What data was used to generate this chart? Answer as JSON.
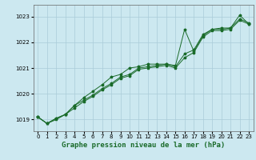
{
  "title": "Graphe pression niveau de la mer (hPa)",
  "background_color": "#cce8f0",
  "grid_color": "#aaccd8",
  "line_color": "#1a6b2a",
  "marker_color": "#1a6b2a",
  "xlim": [
    -0.5,
    23.5
  ],
  "ylim": [
    1018.55,
    1023.45
  ],
  "yticks": [
    1019,
    1020,
    1021,
    1022,
    1023
  ],
  "xticks": [
    0,
    1,
    2,
    3,
    4,
    5,
    6,
    7,
    8,
    9,
    10,
    11,
    12,
    13,
    14,
    15,
    16,
    17,
    18,
    19,
    20,
    21,
    22,
    23
  ],
  "series1": [
    1019.1,
    1018.85,
    1019.05,
    1019.2,
    1019.55,
    1019.75,
    1019.95,
    1020.2,
    1020.4,
    1020.65,
    1020.75,
    1021.0,
    1021.05,
    1021.1,
    1021.15,
    1021.05,
    1021.55,
    1021.7,
    1022.3,
    1022.5,
    1022.5,
    1022.55,
    1022.9,
    1022.75
  ],
  "series2": [
    1019.1,
    1018.85,
    1019.05,
    1019.2,
    1019.55,
    1019.85,
    1020.1,
    1020.35,
    1020.65,
    1020.75,
    1021.0,
    1021.05,
    1021.15,
    1021.15,
    1021.15,
    1021.1,
    1022.5,
    1021.65,
    1022.25,
    1022.5,
    1022.55,
    1022.55,
    1023.05,
    1022.7
  ],
  "series3": [
    1019.1,
    1018.85,
    1019.0,
    1019.2,
    1019.45,
    1019.7,
    1019.9,
    1020.15,
    1020.35,
    1020.6,
    1020.7,
    1020.95,
    1021.0,
    1021.05,
    1021.1,
    1021.0,
    1021.4,
    1021.6,
    1022.2,
    1022.45,
    1022.45,
    1022.5,
    1022.85,
    1022.7
  ],
  "tick_fontsize": 5.0,
  "label_fontsize": 6.5
}
